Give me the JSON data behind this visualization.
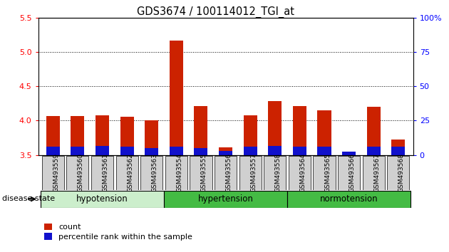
{
  "title": "GDS3674 / 100114012_TGI_at",
  "samples": [
    "GSM493559",
    "GSM493560",
    "GSM493561",
    "GSM493562",
    "GSM493563",
    "GSM493554",
    "GSM493555",
    "GSM493556",
    "GSM493557",
    "GSM493558",
    "GSM493564",
    "GSM493565",
    "GSM493566",
    "GSM493567",
    "GSM493568"
  ],
  "red_values": [
    4.07,
    4.07,
    4.08,
    4.06,
    4.01,
    5.17,
    4.21,
    3.61,
    4.08,
    4.29,
    4.21,
    4.15,
    3.53,
    4.2,
    3.73
  ],
  "blue_values": [
    0.12,
    0.12,
    0.13,
    0.12,
    0.1,
    0.12,
    0.1,
    0.06,
    0.12,
    0.13,
    0.12,
    0.12,
    0.05,
    0.12,
    0.12
  ],
  "ymin": 3.5,
  "ymax": 5.5,
  "y_left_ticks": [
    3.5,
    4.0,
    4.5,
    5.0,
    5.5
  ],
  "y_right_ticks": [
    0,
    25,
    50,
    75,
    100
  ],
  "bar_width": 0.55,
  "red_color": "#CC2200",
  "blue_color": "#1111CC",
  "legend_count": "count",
  "legend_percentile": "percentile rank within the sample",
  "disease_state_label": "disease state",
  "group_light_color": "#CCEECC",
  "group_dark_color": "#44BB44",
  "group_box_color": "#D0D0D0",
  "group_data": [
    {
      "label": "hypotension",
      "start": 0,
      "end": 5,
      "light": true
    },
    {
      "label": "hypertension",
      "start": 5,
      "end": 10,
      "light": false
    },
    {
      "label": "normotension",
      "start": 10,
      "end": 15,
      "light": false
    }
  ]
}
